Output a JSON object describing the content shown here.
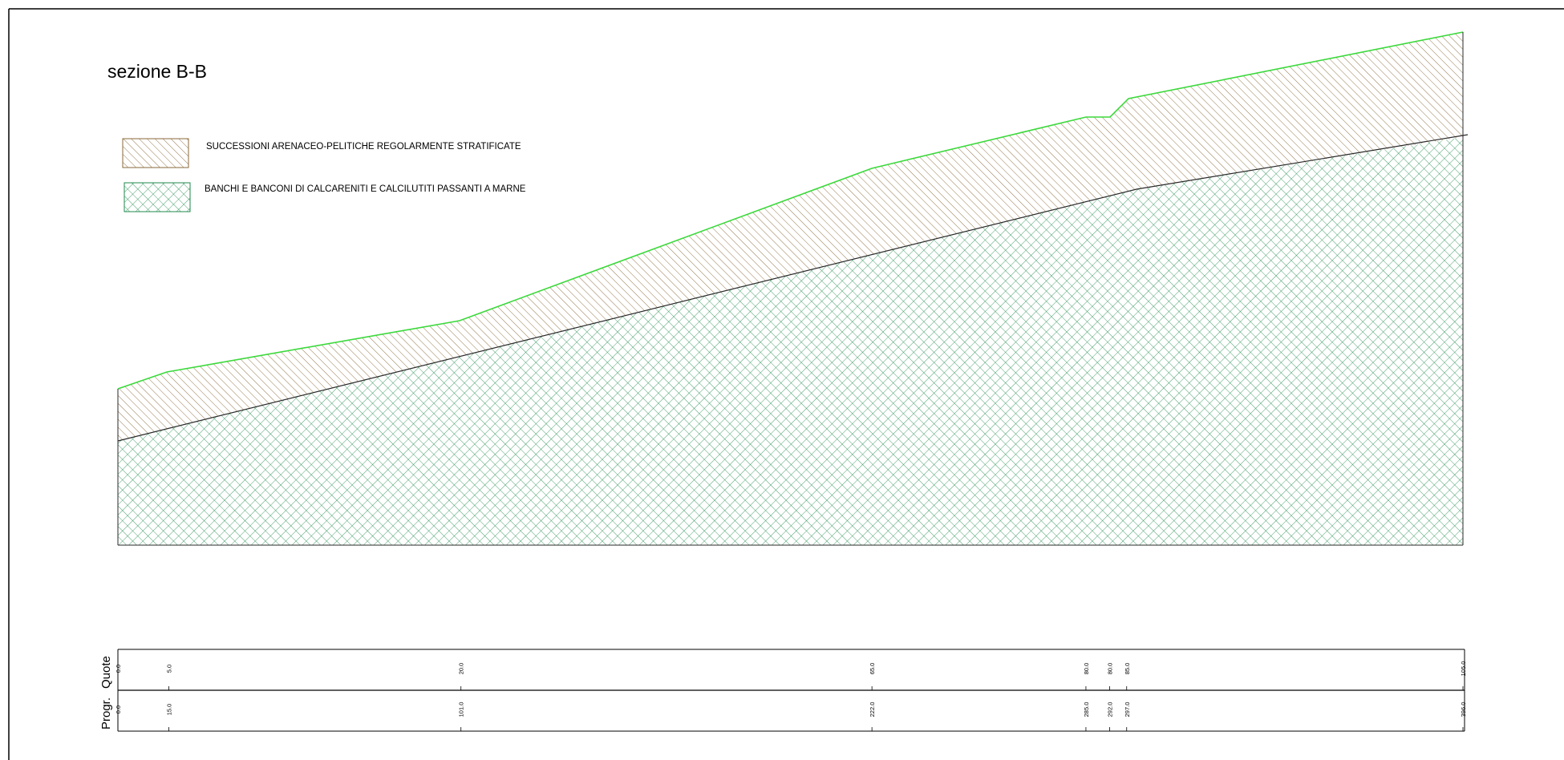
{
  "title": "sezione B-B",
  "legend": [
    {
      "label": "SUCCESSIONI ARENACEO-PELITICHE REGOLARMENTE STRATIFICATE",
      "color": "#8a6a3a",
      "pattern": "diagonal-hatch"
    },
    {
      "label": "BANCHI E BANCONI DI CALCARENITI E CALCILUTITI PASSANTI A MARNE",
      "color": "#1f8a4c",
      "pattern": "cross-hatch"
    }
  ],
  "profile": {
    "ground_line_color": "#3bd93b",
    "stations": [
      {
        "progr": "0.0",
        "quota": "0.0"
      },
      {
        "progr": "15.0",
        "quota": "5.0"
      },
      {
        "progr": "101.0",
        "quota": "20.0"
      },
      {
        "progr": "222.0",
        "quota": "65.0"
      },
      {
        "progr": "285.0",
        "quota": "80.0"
      },
      {
        "progr": "292.0",
        "quota": "80.0"
      },
      {
        "progr": "297.0",
        "quota": "85.0"
      },
      {
        "progr": "396.0",
        "quota": "105.0"
      }
    ]
  },
  "table": {
    "row_quote_label": "Quote",
    "row_progr_label": "Progr."
  }
}
